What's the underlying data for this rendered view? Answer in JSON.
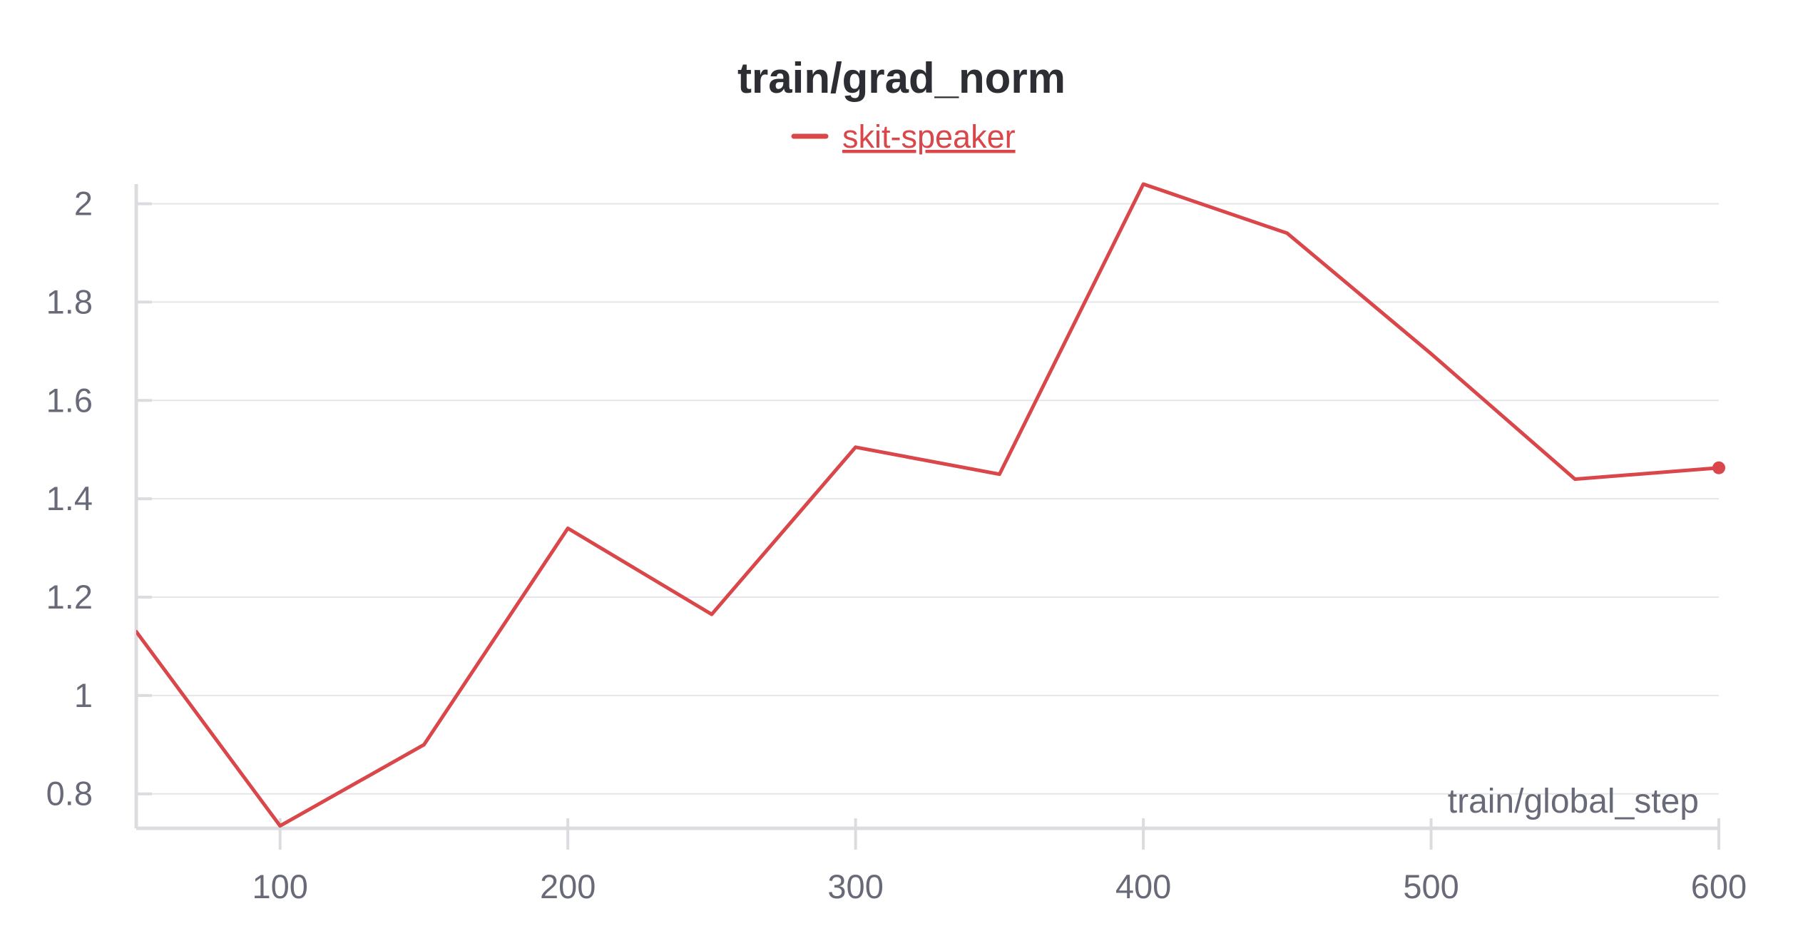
{
  "chart_data": {
    "type": "line",
    "title": "train/grad_norm",
    "xlabel": "train/global_step",
    "ylabel": "",
    "xlim": [
      50,
      600
    ],
    "ylim": [
      0.73,
      2.04
    ],
    "xticks": [
      100,
      200,
      300,
      400,
      500,
      600
    ],
    "yticks": [
      0.8,
      1,
      1.2,
      1.4,
      1.6,
      1.8,
      2
    ],
    "grid": true,
    "legend_position": "top-center",
    "series": [
      {
        "name": "skit-speaker",
        "color": "#d9474b",
        "x": [
          50,
          100,
          150,
          200,
          250,
          300,
          350,
          400,
          450,
          500,
          550,
          600
        ],
        "values": [
          1.13,
          0.735,
          0.9,
          1.34,
          1.165,
          1.505,
          1.45,
          2.04,
          1.94,
          1.695,
          1.44,
          1.463
        ]
      }
    ]
  }
}
